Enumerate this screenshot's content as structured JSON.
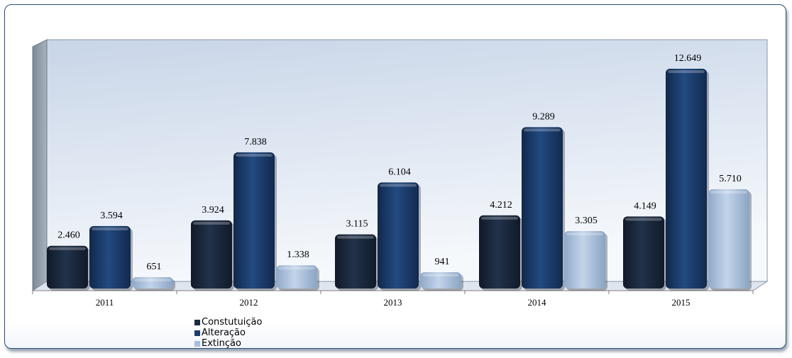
{
  "chart_data": {
    "type": "bar",
    "title": "",
    "xlabel": "",
    "ylabel": "",
    "categories": [
      "2011",
      "2012",
      "2013",
      "2014",
      "2015"
    ],
    "series": [
      {
        "name": "Constutuição",
        "values": [
          2460,
          3924,
          3115,
          4212,
          4149
        ],
        "labels": [
          "2.460",
          "3.924",
          "3.115",
          "4.212",
          "4.149"
        ],
        "color": "#1b2a40"
      },
      {
        "name": "Alteração",
        "values": [
          3594,
          7838,
          6104,
          9289,
          12649
        ],
        "labels": [
          "3.594",
          "7.838",
          "6.104",
          "9.289",
          "12.649"
        ],
        "color": "#1b3d6e"
      },
      {
        "name": "Extinção",
        "values": [
          651,
          1338,
          941,
          3305,
          5710
        ],
        "labels": [
          "651",
          "1.338",
          "941",
          "3.305",
          "5.710"
        ],
        "color": "#a7bfdd"
      }
    ],
    "ylim": [
      0,
      14000
    ],
    "grid": false,
    "legend_position": "bottom-left",
    "style": "3d-clustered-column"
  }
}
